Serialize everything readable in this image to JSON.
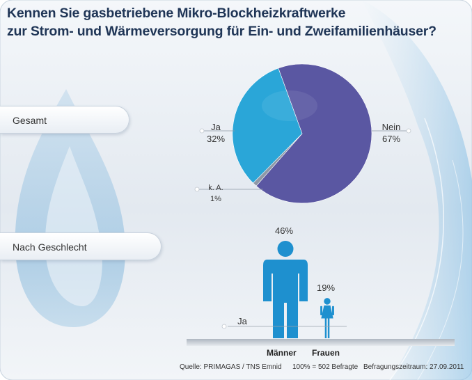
{
  "title": {
    "line1": "Kennen Sie gasbetriebene Mikro-Blockheizkraftwerke",
    "line2": "zur Strom- und Wärmeversorgung für Ein- und Zweifamilienhäuser?"
  },
  "sections": {
    "gesamt": "Gesamt",
    "nach_geschlecht": "Nach Geschlecht"
  },
  "chart_data": [
    {
      "type": "pie",
      "labels": [
        "Ja",
        "Nein",
        "k. A."
      ],
      "values": [
        32,
        67,
        1
      ],
      "value_labels": [
        "32%",
        "67%",
        "1%"
      ],
      "colors": [
        "#2aa6d8",
        "#5a57a2",
        "#8e98a6"
      ]
    },
    {
      "type": "bar",
      "categories": [
        "Männer",
        "Frauen"
      ],
      "series": [
        {
          "name": "Ja",
          "values": [
            46,
            19
          ]
        }
      ],
      "value_labels": [
        "46%",
        "19%"
      ],
      "colors": [
        "#1e90cf",
        "#1e90cf"
      ],
      "ylim": [
        0,
        46
      ]
    }
  ],
  "footer": {
    "source": "Quelle: PRIMAGAS / TNS Emnid",
    "base": "100% = 502 Befragte",
    "period": "Befragungszeitraum: 27.09.2011"
  }
}
